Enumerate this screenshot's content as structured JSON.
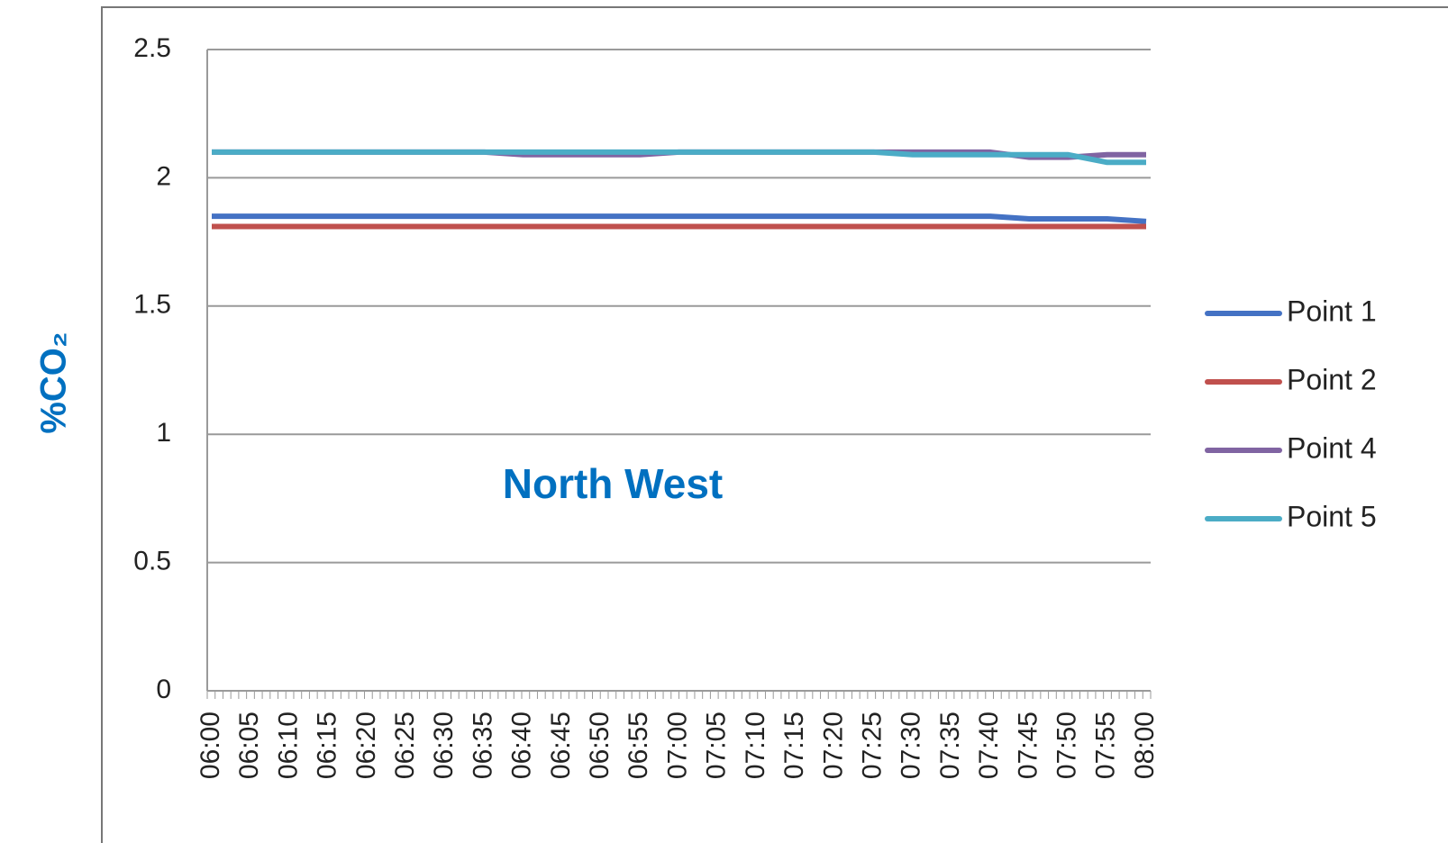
{
  "chart_data": {
    "type": "line",
    "y_label": "%CO₂",
    "annotation": "North West",
    "categories": [
      "06:00",
      "06:05",
      "06:10",
      "06:15",
      "06:20",
      "06:25",
      "06:30",
      "06:35",
      "06:40",
      "06:45",
      "06:50",
      "06:55",
      "07:00",
      "07:05",
      "07:10",
      "07:15",
      "07:20",
      "07:25",
      "07:30",
      "07:35",
      "07:40",
      "07:45",
      "07:50",
      "07:55",
      "08:00"
    ],
    "series": [
      {
        "name": "Point 1",
        "color": "#4472c4",
        "values": [
          1.85,
          1.85,
          1.85,
          1.85,
          1.85,
          1.85,
          1.85,
          1.85,
          1.85,
          1.85,
          1.85,
          1.85,
          1.85,
          1.85,
          1.85,
          1.85,
          1.85,
          1.85,
          1.85,
          1.85,
          1.85,
          1.84,
          1.84,
          1.84,
          1.83
        ]
      },
      {
        "name": "Point 2",
        "color": "#c0504d",
        "values": [
          1.81,
          1.81,
          1.81,
          1.81,
          1.81,
          1.81,
          1.81,
          1.81,
          1.81,
          1.81,
          1.81,
          1.81,
          1.81,
          1.81,
          1.81,
          1.81,
          1.81,
          1.81,
          1.81,
          1.81,
          1.81,
          1.81,
          1.81,
          1.81,
          1.81
        ]
      },
      {
        "name": "Point 4",
        "color": "#8064a2",
        "values": [
          2.1,
          2.1,
          2.1,
          2.1,
          2.1,
          2.1,
          2.1,
          2.1,
          2.09,
          2.09,
          2.09,
          2.09,
          2.1,
          2.1,
          2.1,
          2.1,
          2.1,
          2.1,
          2.1,
          2.1,
          2.1,
          2.08,
          2.08,
          2.09,
          2.09
        ]
      },
      {
        "name": "Point 5",
        "color": "#4bacc6",
        "values": [
          2.1,
          2.1,
          2.1,
          2.1,
          2.1,
          2.1,
          2.1,
          2.1,
          2.1,
          2.1,
          2.1,
          2.1,
          2.1,
          2.1,
          2.1,
          2.1,
          2.1,
          2.1,
          2.09,
          2.09,
          2.09,
          2.09,
          2.09,
          2.06,
          2.06
        ]
      }
    ],
    "ylim": [
      0,
      2.5
    ],
    "yticks": [
      0,
      0.5,
      1,
      1.5,
      2,
      2.5
    ],
    "grid": true,
    "legend": "right"
  }
}
